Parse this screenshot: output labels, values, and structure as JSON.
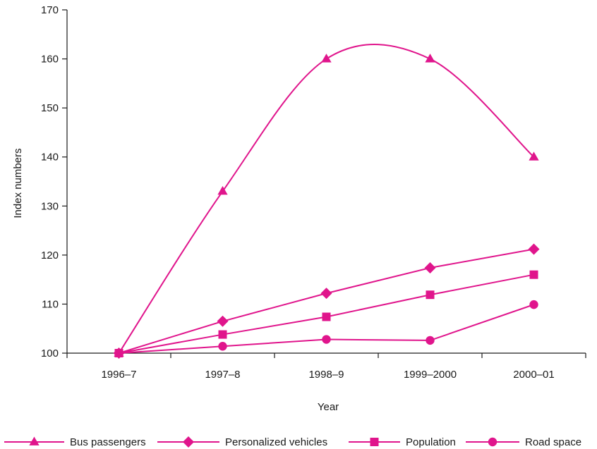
{
  "chart_data": {
    "type": "line",
    "title": "",
    "xlabel": "Year",
    "ylabel": "Index numbers",
    "categories": [
      "1996–7",
      "1997–8",
      "1998–9",
      "1999–2000",
      "2000–01"
    ],
    "ylim": [
      100,
      170
    ],
    "yticks": [
      100,
      110,
      120,
      130,
      140,
      150,
      160,
      170
    ],
    "grid": false,
    "legend_position": "bottom",
    "series": [
      {
        "name": "Bus passengers",
        "marker": "triangle",
        "smooth": true,
        "values": [
          100,
          133,
          160,
          160,
          140
        ]
      },
      {
        "name": "Personalized vehicles",
        "marker": "diamond",
        "values": [
          100,
          106.5,
          112.2,
          117.4,
          121.2
        ]
      },
      {
        "name": "Population",
        "marker": "square",
        "values": [
          100,
          103.8,
          107.4,
          111.9,
          116
        ]
      },
      {
        "name": "Road space",
        "marker": "circle",
        "values": [
          100,
          101.4,
          102.8,
          102.6,
          109.9
        ]
      }
    ],
    "line_color": "#e0158c",
    "axis_color": "#1a1a1a"
  }
}
